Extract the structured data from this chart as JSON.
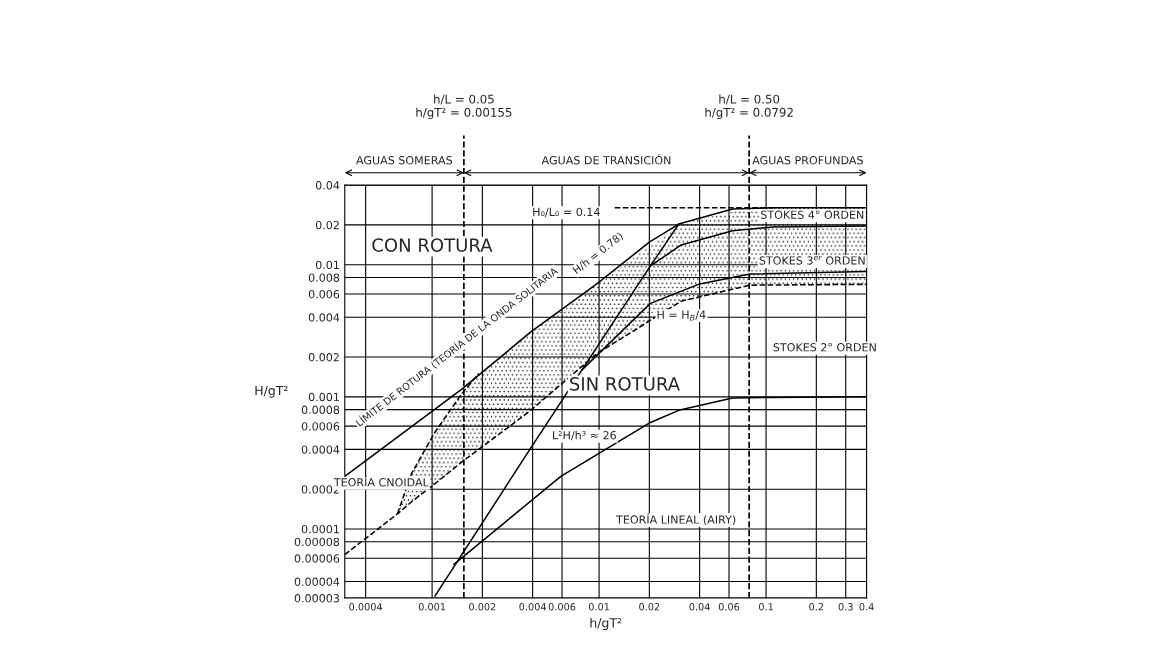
{
  "chart_data": {
    "type": "line",
    "xlabel": "h/gT²",
    "ylabel": "H/gT²",
    "log": "xy",
    "xlim": [
      0.0003,
      0.4
    ],
    "ylim": [
      3e-05,
      0.04
    ],
    "xticks": [
      0.0004,
      0.001,
      0.002,
      0.004,
      0.006,
      0.01,
      0.02,
      0.04,
      0.06,
      0.1,
      0.2,
      0.3,
      0.4
    ],
    "yticks": [
      {
        "value": 3e-05,
        "label": "0.00003"
      },
      {
        "value": 4e-05,
        "label": "0.00004"
      },
      {
        "value": 6e-05,
        "label": "0.00006"
      },
      {
        "value": 8e-05,
        "label": "0.00008"
      },
      0.0001,
      0.0002,
      0.0004,
      0.0006,
      0.0008,
      0.001,
      0.002,
      0.004,
      0.006,
      0.008,
      0.01,
      0.02,
      0.04
    ],
    "grid": true,
    "marker": "none",
    "series": [
      {
        "color": "#000000",
        "line_style": "solid",
        "x": [
          0.0003,
          0.0015,
          0.0039,
          0.0096,
          0.02,
          0.03,
          0.063,
          0.11,
          0.4
        ],
        "values": [
          0.00025,
          0.00114,
          0.0031,
          0.0071,
          0.0148,
          0.0203,
          0.0264,
          0.027,
          0.027
        ]
      },
      {
        "color": "#000000",
        "line_style": "dashed",
        "x": [
          0.0124,
          0.11
        ],
        "values": [
          0.027,
          0.027
        ]
      },
      {
        "color": "#000000",
        "line_style": "dashed",
        "x": [
          0.0003,
          0.00062,
          0.00075,
          0.00104,
          0.0015,
          0.0019,
          0.0038,
          0.0096,
          0.031,
          0.08,
          0.4
        ],
        "values": [
          6.4e-05,
          0.00013,
          0.00016,
          0.00022,
          0.00032,
          0.0004,
          0.00077,
          0.0021,
          0.0053,
          0.007,
          0.0071
        ],
        "lower": [
          null,
          0.00013,
          0.00016,
          0.00022,
          0.00032,
          0.0004,
          0.00077,
          0.0021,
          0.0053,
          0.007,
          0.0071
        ],
        "upper": [
          null,
          0.00013,
          0.00026,
          0.00054,
          0.00105,
          0.0015,
          0.003,
          0.0071,
          0.0205,
          0.027,
          0.027
        ]
      },
      {
        "color": "#000000",
        "line_style": "dashed",
        "x": [
          0.00062,
          0.00075,
          0.00104,
          0.0015,
          0.0019
        ],
        "values": [
          0.00013,
          0.00026,
          0.00054,
          0.00105,
          0.0015
        ]
      },
      {
        "color": "#000000",
        "line_style": "solid",
        "x": [
          0.00104,
          0.0038,
          0.0079,
          0.0203,
          0.03
        ],
        "values": [
          3.1e-05,
          0.00039,
          0.0016,
          0.0098,
          0.0203
        ]
      },
      {
        "color": "#000000",
        "line_style": "solid",
        "x": [
          0.00135,
          0.0059,
          0.0203,
          0.03,
          0.063,
          0.11,
          0.4
        ],
        "values": [
          5.4e-05,
          0.00025,
          0.00064,
          0.00079,
          0.00098,
          0.00099,
          0.001
        ]
      },
      {
        "color": "#000000",
        "line_style": "solid",
        "x": [
          0.0079,
          0.0203,
          0.0394,
          0.08,
          0.4
        ],
        "values": [
          0.0016,
          0.0051,
          0.0071,
          0.0085,
          0.0089
        ]
      },
      {
        "color": "#000000",
        "line_style": "solid",
        "x": [
          0.0203,
          0.031,
          0.063,
          0.11,
          0.4
        ],
        "values": [
          0.0098,
          0.0141,
          0.0181,
          0.0193,
          0.0196
        ]
      }
    ],
    "ref_lines": [
      {
        "axis": "x",
        "value": 0.00155,
        "label": "h/L = 0.05\nh/gT² = 0.00155",
        "line_style": "dashed",
        "color": "#000000"
      },
      {
        "axis": "x",
        "value": 0.0792,
        "label": "h/L = 0.50\nh/gT² = 0.0792",
        "line_style": "dashed",
        "color": "#000000"
      }
    ],
    "annotations": [
      "CON ROTURA",
      "SIN ROTURA",
      "STOKES 4° ORDEN",
      "STOKES 3$^{er}$ ORDEN",
      "STOKES 2° ORDEN",
      "TEORÍA CNOIDAL",
      "TEORÍA LINEAL (AIRY)",
      "LÍMITE DE ROTURA (TEORÍA DE LA ONDA SOLITARIA",
      "H/h = 0.78)",
      "H₀/L₀ = 0.14",
      "H = H$_{B}$/4",
      "L²H/h³ ≈ 26",
      "AGUAS SOMERAS",
      "AGUAS DE TRANSICIÓN",
      "AGUAS PROFUNDAS"
    ]
  }
}
